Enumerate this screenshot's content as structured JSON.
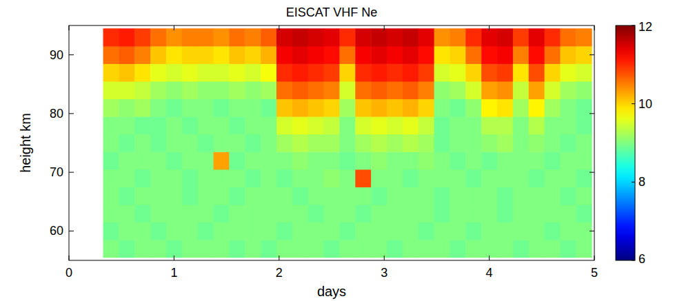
{
  "chart_data": {
    "type": "heatmap",
    "title": "EISCAT VHF Ne",
    "x_label": "days",
    "y_label": "height km",
    "x": [
      0.4,
      0.55,
      0.7,
      0.85,
      1.0,
      1.15,
      1.3,
      1.45,
      1.6,
      1.75,
      1.9,
      2.05,
      2.2,
      2.35,
      2.5,
      2.65,
      2.8,
      2.95,
      3.1,
      3.25,
      3.4,
      3.55,
      3.7,
      3.85,
      4.0,
      4.15,
      4.3,
      4.45,
      4.6,
      4.75,
      4.9
    ],
    "y": [
      57,
      60,
      63,
      66,
      69,
      72,
      75,
      78,
      81,
      84,
      87,
      90,
      93
    ],
    "values": [
      [
        9.0,
        8.9,
        9.0,
        9.0,
        8.9,
        9.0,
        9.0,
        9.0,
        8.9,
        9.0,
        8.9,
        9.0,
        9.0,
        9.0,
        8.9,
        9.0,
        9.0,
        9.0,
        8.9,
        9.0,
        9.0,
        9.0,
        8.9,
        9.0,
        9.0,
        9.0,
        8.9,
        9.0,
        9.0,
        8.9,
        9.0
      ],
      [
        8.9,
        9.0,
        9.0,
        8.9,
        9.0,
        9.0,
        8.9,
        9.0,
        9.0,
        9.0,
        9.0,
        8.9,
        9.0,
        9.0,
        9.0,
        8.9,
        9.0,
        9.0,
        9.0,
        9.0,
        8.9,
        9.0,
        9.0,
        8.9,
        9.0,
        9.0,
        9.0,
        9.0,
        8.9,
        9.0,
        9.0
      ],
      [
        9.0,
        9.0,
        8.9,
        9.0,
        9.0,
        9.0,
        9.0,
        8.9,
        9.0,
        9.0,
        9.0,
        9.0,
        9.0,
        8.9,
        9.0,
        9.0,
        8.9,
        9.0,
        9.0,
        9.0,
        9.0,
        8.9,
        9.0,
        9.0,
        9.0,
        8.9,
        9.0,
        9.0,
        9.0,
        9.0,
        8.9
      ],
      [
        9.0,
        8.9,
        9.0,
        9.0,
        9.0,
        8.9,
        9.0,
        9.0,
        8.9,
        9.0,
        9.0,
        9.0,
        8.9,
        9.0,
        9.0,
        9.0,
        9.0,
        8.9,
        9.0,
        9.0,
        9.0,
        8.9,
        9.0,
        9.0,
        9.0,
        8.9,
        9.0,
        9.0,
        9.0,
        8.9,
        9.0
      ],
      [
        9.0,
        9.0,
        8.9,
        9.0,
        9.0,
        8.9,
        9.0,
        9.0,
        9.0,
        8.9,
        9.0,
        8.9,
        9.0,
        9.0,
        9.1,
        9.0,
        10.8,
        9.0,
        9.0,
        8.9,
        9.0,
        9.0,
        9.0,
        8.9,
        9.0,
        9.0,
        9.0,
        8.9,
        9.0,
        9.0,
        8.9
      ],
      [
        8.9,
        9.0,
        9.0,
        9.0,
        8.9,
        9.0,
        9.0,
        10.3,
        8.9,
        9.0,
        9.0,
        9.0,
        9.1,
        9.0,
        9.0,
        8.9,
        9.0,
        9.1,
        9.0,
        9.0,
        9.1,
        9.0,
        8.9,
        9.0,
        8.9,
        9.0,
        9.0,
        9.0,
        8.9,
        9.0,
        9.0
      ],
      [
        9.0,
        8.9,
        9.0,
        8.9,
        9.0,
        9.0,
        8.9,
        9.0,
        9.0,
        8.9,
        9.0,
        9.2,
        9.3,
        9.2,
        9.2,
        9.0,
        9.2,
        9.3,
        9.2,
        9.3,
        9.2,
        8.9,
        9.0,
        9.0,
        9.1,
        9.2,
        9.0,
        9.1,
        9.0,
        8.9,
        9.0
      ],
      [
        9.0,
        9.0,
        8.9,
        8.9,
        9.0,
        8.9,
        9.0,
        9.0,
        8.9,
        9.0,
        9.0,
        9.5,
        9.6,
        9.5,
        9.4,
        9.0,
        9.5,
        9.6,
        9.5,
        9.6,
        9.4,
        8.9,
        9.0,
        9.0,
        9.3,
        9.3,
        9.0,
        9.3,
        9.0,
        9.0,
        8.9
      ],
      [
        9.2,
        9.1,
        9.2,
        9.0,
        8.9,
        9.0,
        9.0,
        8.9,
        9.0,
        9.0,
        8.9,
        10.1,
        10.2,
        10.1,
        10.0,
        9.2,
        10.1,
        10.2,
        10.1,
        10.2,
        10.0,
        9.0,
        8.9,
        9.1,
        9.8,
        9.9,
        9.2,
        9.8,
        9.2,
        9.0,
        8.9
      ],
      [
        9.5,
        9.5,
        9.4,
        9.2,
        9.1,
        9.2,
        9.1,
        9.1,
        9.2,
        9.1,
        9.2,
        10.6,
        10.7,
        10.6,
        10.5,
        9.5,
        10.6,
        10.7,
        10.6,
        10.7,
        10.5,
        9.1,
        9.2,
        9.5,
        10.3,
        10.4,
        9.4,
        10.3,
        9.5,
        9.2,
        9.1
      ],
      [
        10.0,
        10.1,
        9.9,
        9.6,
        9.5,
        9.6,
        9.5,
        9.5,
        9.6,
        9.5,
        9.7,
        11.0,
        11.1,
        11.0,
        10.9,
        10.0,
        11.0,
        11.1,
        11.0,
        11.1,
        10.9,
        9.5,
        9.6,
        10.0,
        10.8,
        10.9,
        9.9,
        10.8,
        10.0,
        9.6,
        9.5
      ],
      [
        10.6,
        10.7,
        10.5,
        10.1,
        9.9,
        10.0,
        10.0,
        9.9,
        10.1,
        10.0,
        10.2,
        11.3,
        11.4,
        11.3,
        11.2,
        10.6,
        11.3,
        11.4,
        11.3,
        11.4,
        11.2,
        9.9,
        10.0,
        10.6,
        11.2,
        11.3,
        10.5,
        11.2,
        10.6,
        10.1,
        10.0
      ],
      [
        11.0,
        11.1,
        10.9,
        10.6,
        10.4,
        10.5,
        10.5,
        10.4,
        10.6,
        10.5,
        10.7,
        11.5,
        11.6,
        11.5,
        11.4,
        11.0,
        11.5,
        11.6,
        11.5,
        11.6,
        11.4,
        10.4,
        10.5,
        11.0,
        11.4,
        11.5,
        10.9,
        11.4,
        11.0,
        10.6,
        10.5
      ]
    ],
    "xlim": [
      0,
      5
    ],
    "ylim": [
      55,
      95
    ],
    "xticks": [
      0,
      1,
      2,
      3,
      4,
      5
    ],
    "yticks": [
      60,
      70,
      80,
      90
    ],
    "color_range": [
      6,
      12
    ],
    "color_ticks": [
      6,
      8,
      10,
      12
    ]
  }
}
